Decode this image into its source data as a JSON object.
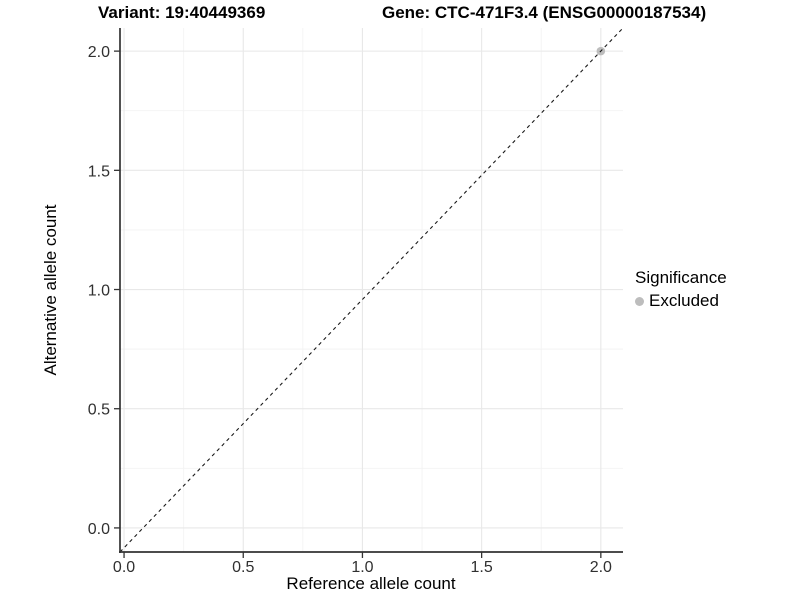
{
  "chart_data": {
    "type": "scatter",
    "titles": {
      "variant": "Variant: 19:40449369",
      "gene": "Gene: CTC-471F3.4 (ENSG00000187534)"
    },
    "xlabel": "Reference allele count",
    "ylabel": "Alternative allele count",
    "x_ticks": [
      "0.0",
      "0.5",
      "1.0",
      "1.5",
      "2.0"
    ],
    "x_tick_values": [
      0,
      0.5,
      1,
      1.5,
      2
    ],
    "y_ticks": [
      "0.0",
      "0.5",
      "1.0",
      "1.5",
      "2.0"
    ],
    "y_tick_values": [
      0,
      0.5,
      1,
      1.5,
      2
    ],
    "xlim": [
      -0.017,
      2.093
    ],
    "ylim": [
      -0.101,
      2.097
    ],
    "grid": "on",
    "series": [
      {
        "name": "Excluded",
        "color": "#bdbdbd",
        "points": [
          [
            2,
            2
          ]
        ]
      }
    ],
    "reference_line": {
      "slope": 1,
      "intercept": 0,
      "style": "dashed",
      "color": "#1a1a1a"
    },
    "legend": {
      "title": "Significance",
      "position": "right",
      "items": [
        {
          "label": "Excluded",
          "color": "#bdbdbd",
          "marker": "circle"
        }
      ]
    },
    "colors": {
      "grid_major": "#e8e8e8",
      "grid_minor": "#f3f3f3",
      "axis": "#333333",
      "tick_label": "#303030"
    }
  }
}
